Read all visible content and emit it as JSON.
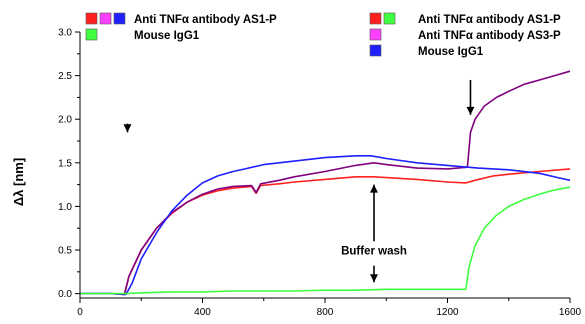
{
  "chart_data": {
    "type": "line",
    "xlim": [
      0,
      1600
    ],
    "ylim": [
      -0.05,
      3.0
    ],
    "x_ticks": [
      "0",
      "400",
      "800",
      "1200",
      "1600"
    ],
    "y_ticks": [
      "0.0",
      "0.5",
      "1.0",
      "1.5",
      "2.0",
      "2.5",
      "3.0"
    ],
    "ylabel": "Δλ [nm]",
    "grid": false,
    "legend_left": {
      "rows": [
        {
          "swatches": [
            "#ff2020",
            "#ff40ff",
            "#2020ff"
          ],
          "label": "Anti TNFα antibody AS1-P"
        },
        {
          "swatches": [
            "#40ff40"
          ],
          "label": "Mouse IgG1"
        }
      ]
    },
    "legend_right": {
      "rows": [
        {
          "swatches": [
            "#ff2020",
            "#40ff40"
          ],
          "label": "Anti TNFα antibody AS1-P"
        },
        {
          "swatches": [
            "#ff40ff"
          ],
          "label": "Anti TNFα antibody AS3-P"
        },
        {
          "swatches": [
            "#2020ff"
          ],
          "label": "Mouse IgG1"
        }
      ]
    },
    "annotations": [
      {
        "text": "Buffer wash"
      }
    ],
    "arrows": [
      {
        "x": 155,
        "y_from": 1.95,
        "y_to": 1.85,
        "direction": "down"
      },
      {
        "x": 1275,
        "y_from": 2.45,
        "y_to": 2.05,
        "direction": "down"
      },
      {
        "x": 960,
        "y_from": 0.6,
        "y_to": 1.25,
        "direction": "up"
      },
      {
        "x": 960,
        "y_from": 0.32,
        "y_to": 0.13,
        "direction": "down"
      }
    ],
    "series": [
      {
        "color": "#ff2020",
        "x": [
          0,
          100,
          145,
          160,
          200,
          250,
          300,
          350,
          400,
          450,
          500,
          560,
          575,
          590,
          650,
          700,
          800,
          900,
          960,
          1000,
          1100,
          1200,
          1260,
          1290,
          1350,
          1400,
          1500,
          1600
        ],
        "y": [
          0.0,
          0.0,
          -0.01,
          0.2,
          0.5,
          0.75,
          0.92,
          1.05,
          1.13,
          1.18,
          1.21,
          1.23,
          1.15,
          1.24,
          1.26,
          1.28,
          1.31,
          1.34,
          1.34,
          1.33,
          1.31,
          1.28,
          1.27,
          1.3,
          1.35,
          1.37,
          1.4,
          1.43
        ]
      },
      {
        "color": "#800080",
        "x": [
          0,
          100,
          145,
          160,
          200,
          250,
          300,
          350,
          400,
          450,
          500,
          560,
          575,
          590,
          650,
          700,
          800,
          900,
          960,
          1000,
          1100,
          1200,
          1265,
          1275,
          1290,
          1320,
          1360,
          1400,
          1450,
          1500,
          1550,
          1600
        ],
        "y": [
          0.0,
          0.0,
          -0.01,
          0.2,
          0.5,
          0.75,
          0.93,
          1.05,
          1.14,
          1.2,
          1.23,
          1.24,
          1.16,
          1.26,
          1.3,
          1.34,
          1.4,
          1.47,
          1.5,
          1.48,
          1.44,
          1.43,
          1.45,
          1.85,
          2.0,
          2.15,
          2.25,
          2.32,
          2.4,
          2.45,
          2.5,
          2.55
        ]
      },
      {
        "color": "#2020ff",
        "x": [
          0,
          100,
          150,
          170,
          200,
          250,
          300,
          350,
          400,
          450,
          500,
          550,
          600,
          700,
          800,
          900,
          950,
          1000,
          1100,
          1200,
          1300,
          1400,
          1500,
          1560,
          1600
        ],
        "y": [
          0.0,
          0.0,
          -0.01,
          0.12,
          0.4,
          0.7,
          0.95,
          1.13,
          1.27,
          1.35,
          1.4,
          1.44,
          1.48,
          1.52,
          1.56,
          1.58,
          1.58,
          1.55,
          1.5,
          1.47,
          1.44,
          1.42,
          1.38,
          1.33,
          1.3
        ]
      },
      {
        "color": "#40ff40",
        "x": [
          0,
          100,
          150,
          200,
          300,
          400,
          500,
          600,
          700,
          800,
          900,
          1000,
          1100,
          1200,
          1260,
          1270,
          1290,
          1320,
          1360,
          1400,
          1450,
          1500,
          1550,
          1600
        ],
        "y": [
          0.0,
          0.0,
          0.0,
          0.01,
          0.02,
          0.02,
          0.03,
          0.03,
          0.03,
          0.04,
          0.04,
          0.05,
          0.05,
          0.05,
          0.05,
          0.3,
          0.55,
          0.75,
          0.9,
          1.0,
          1.08,
          1.14,
          1.19,
          1.22
        ]
      }
    ]
  }
}
